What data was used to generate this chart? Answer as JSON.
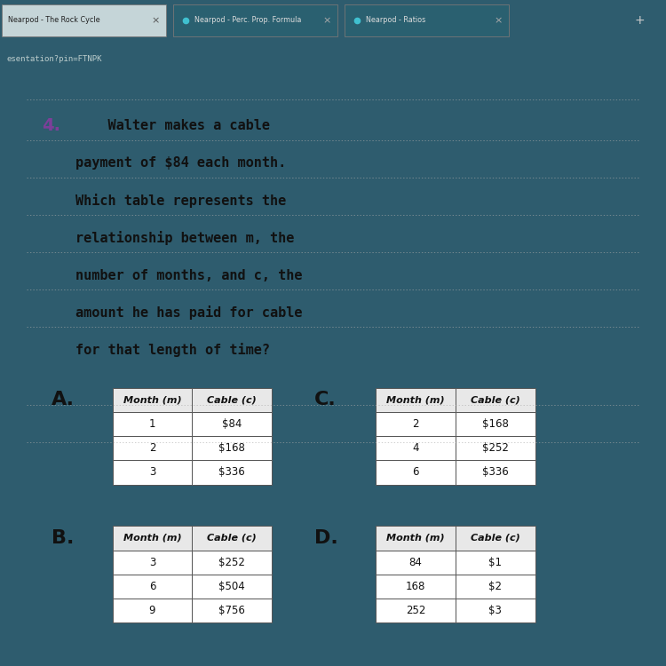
{
  "question_number": "4.",
  "question_number_color": "#7c3f99",
  "question_lines": [
    "    Walter makes a cable",
    "payment of $84 each month.",
    "Which table represents the",
    "relationship between m, the",
    "number of months, and c, the",
    "amount he has paid for cable",
    "for that length of time?"
  ],
  "italic_words": [
    "m,",
    "c,"
  ],
  "browser_bg": "#2e5c6e",
  "tab_bg_dark": "#1e3d4a",
  "content_bg": "#f2f0ec",
  "white": "#ffffff",
  "table_header_bg": "#e0e0e0",
  "table_border": "#555555",
  "text_dark": "#111111",
  "tab_labels": [
    "Nearpod - The Rock Cycle",
    "Nearpod - Perc. Prop. Formula",
    "Nearpod - Ratios"
  ],
  "url_text": "esentation?pin=FTNPK",
  "options": {
    "A": {
      "label": "A.",
      "headers": [
        "Month (m)",
        "Cable (c)"
      ],
      "rows": [
        [
          "1",
          "$84"
        ],
        [
          "2",
          "$168"
        ],
        [
          "3",
          "$336"
        ]
      ]
    },
    "B": {
      "label": "B.",
      "headers": [
        "Month (m)",
        "Cable (c)"
      ],
      "rows": [
        [
          "3",
          "$252"
        ],
        [
          "6",
          "$504"
        ],
        [
          "9",
          "$756"
        ]
      ]
    },
    "C": {
      "label": "C.",
      "headers": [
        "Month (m)",
        "Cable (c)"
      ],
      "rows": [
        [
          "2",
          "$168"
        ],
        [
          "4",
          "$252"
        ],
        [
          "6",
          "$336"
        ]
      ]
    },
    "D": {
      "label": "D.",
      "headers": [
        "Month (m)",
        "Cable (c)"
      ],
      "rows": [
        [
          "84",
          "$1"
        ],
        [
          "168",
          "$2"
        ],
        [
          "252",
          "$3"
        ]
      ]
    }
  },
  "fig_width": 7.5,
  "fig_height": 7.5,
  "dpi": 100
}
